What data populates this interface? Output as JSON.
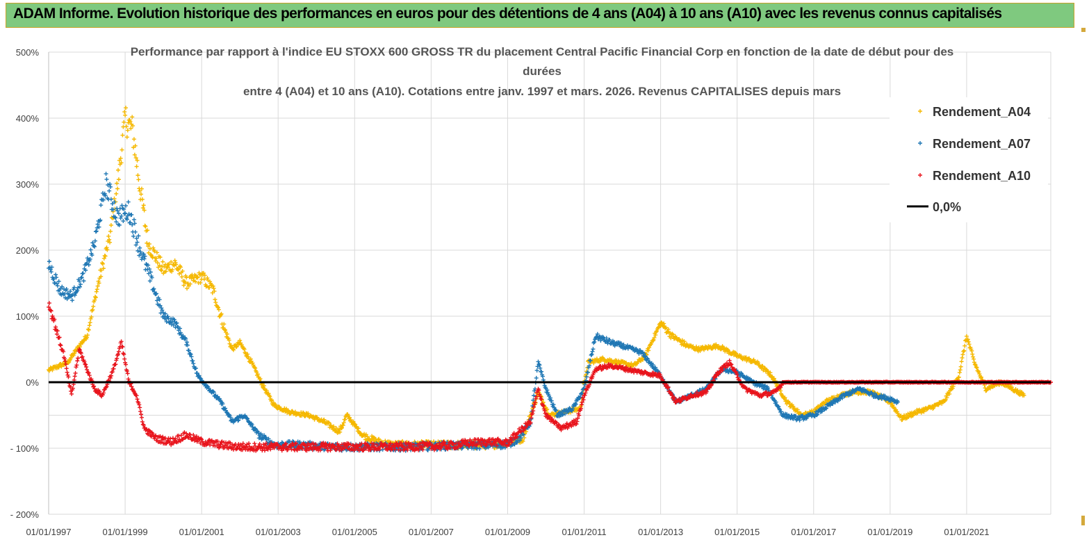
{
  "banner": {
    "title": "ADAM Informe. Evolution historique des performances en euros pour des détentions de 4 ans (A04) à 10 ans (A10) avec les revenus connus capitalisés"
  },
  "colors": {
    "banner_bg": "#7fc97f",
    "A04": "#f5b800",
    "A07": "#1f77b4",
    "A10": "#e8141c",
    "zero": "#000000",
    "grid": "#d9d9d9"
  },
  "chart_data": {
    "type": "scatter",
    "title_lines": [
      "Performance par rapport à l'indice EU STOXX 600 GROSS TR  du placement Central Pacific Financial Corp en fonction de la date de début pour des",
      "durées",
      "entre 4 (A04) et 10 ans (A10).  Cotations entre janv. 1997 et mars. 2026. Revenus CAPITALISES depuis mars"
    ],
    "y_ticks": [
      "500%",
      "400%",
      "300%",
      "200%",
      "100%",
      "0%",
      "- 100%",
      "- 200%"
    ],
    "y_tick_values": [
      500,
      400,
      300,
      200,
      100,
      0,
      -100,
      -200
    ],
    "ylim": [
      -200,
      500
    ],
    "x_ticks": [
      "01/01/1997",
      "01/01/1999",
      "01/01/2001",
      "01/01/2003",
      "01/01/2005",
      "01/01/2007",
      "01/01/2009",
      "01/01/2011",
      "01/01/2013",
      "01/01/2015",
      "01/01/2017",
      "01/01/2019",
      "01/01/2021"
    ],
    "x_tick_values": [
      1997,
      1999,
      2001,
      2003,
      2005,
      2007,
      2009,
      2011,
      2013,
      2015,
      2017,
      2019,
      2021
    ],
    "xlim": [
      1997,
      2023.2
    ],
    "grid": true,
    "legend_position": "top-right",
    "series": [
      {
        "name": "Rendement_A04",
        "color_key": "A04",
        "points": [
          [
            1997,
            18
          ],
          [
            1997.5,
            30
          ],
          [
            1997.8,
            55
          ],
          [
            1998.0,
            70
          ],
          [
            1998.3,
            150
          ],
          [
            1998.6,
            220
          ],
          [
            1998.8,
            300
          ],
          [
            1999.0,
            400
          ],
          [
            1999.2,
            380
          ],
          [
            1999.4,
            290
          ],
          [
            1999.6,
            210
          ],
          [
            1999.8,
            190
          ],
          [
            2000.0,
            170
          ],
          [
            2000.3,
            180
          ],
          [
            2000.6,
            150
          ],
          [
            2001.0,
            160
          ],
          [
            2001.3,
            140
          ],
          [
            2001.6,
            80
          ],
          [
            2001.8,
            50
          ],
          [
            2002.0,
            60
          ],
          [
            2002.3,
            30
          ],
          [
            2002.6,
            -5
          ],
          [
            2002.9,
            -35
          ],
          [
            2003.3,
            -45
          ],
          [
            2003.8,
            -50
          ],
          [
            2004.2,
            -60
          ],
          [
            2004.6,
            -75
          ],
          [
            2004.8,
            -50
          ],
          [
            2005.2,
            -80
          ],
          [
            2005.6,
            -90
          ],
          [
            2006.0,
            -95
          ],
          [
            2006.5,
            -95
          ],
          [
            2007.0,
            -95
          ],
          [
            2007.5,
            -95
          ],
          [
            2008.0,
            -95
          ],
          [
            2008.5,
            -95
          ],
          [
            2009.0,
            -92
          ],
          [
            2009.4,
            -85
          ],
          [
            2009.8,
            -15
          ],
          [
            2010.1,
            -50
          ],
          [
            2010.5,
            -45
          ],
          [
            2010.9,
            -40
          ],
          [
            2011.1,
            30
          ],
          [
            2011.5,
            35
          ],
          [
            2011.9,
            30
          ],
          [
            2012.3,
            25
          ],
          [
            2012.6,
            40
          ],
          [
            2013.0,
            90
          ],
          [
            2013.3,
            70
          ],
          [
            2013.7,
            55
          ],
          [
            2014.0,
            50
          ],
          [
            2014.5,
            55
          ],
          [
            2015.0,
            40
          ],
          [
            2015.5,
            30
          ],
          [
            2015.9,
            10
          ],
          [
            2016.3,
            -30
          ],
          [
            2016.7,
            -50
          ],
          [
            2017.0,
            -45
          ],
          [
            2017.3,
            -30
          ],
          [
            2017.7,
            -20
          ],
          [
            2018.0,
            -15
          ],
          [
            2018.5,
            -15
          ],
          [
            2019.0,
            -30
          ],
          [
            2019.3,
            -55
          ],
          [
            2019.7,
            -45
          ],
          [
            2020.0,
            -40
          ],
          [
            2020.4,
            -30
          ],
          [
            2020.8,
            10
          ],
          [
            2021.0,
            70
          ],
          [
            2021.2,
            30
          ],
          [
            2021.5,
            -10
          ],
          [
            2021.9,
            0
          ],
          [
            2022.2,
            -10
          ],
          [
            2022.5,
            -20
          ]
        ]
      },
      {
        "name": "Rendement_A07",
        "color_key": "A07",
        "points": [
          [
            1997,
            180
          ],
          [
            1997.3,
            140
          ],
          [
            1997.6,
            130
          ],
          [
            1997.9,
            160
          ],
          [
            1998.2,
            210
          ],
          [
            1998.5,
            300
          ],
          [
            1998.8,
            250
          ],
          [
            1999.1,
            260
          ],
          [
            1999.4,
            200
          ],
          [
            1999.7,
            150
          ],
          [
            2000.0,
            100
          ],
          [
            2000.3,
            90
          ],
          [
            2000.6,
            60
          ],
          [
            2000.9,
            10
          ],
          [
            2001.2,
            -10
          ],
          [
            2001.5,
            -30
          ],
          [
            2001.8,
            -60
          ],
          [
            2002.1,
            -50
          ],
          [
            2002.5,
            -80
          ],
          [
            2002.9,
            -95
          ],
          [
            2003.5,
            -95
          ],
          [
            2004.5,
            -98
          ],
          [
            2005.5,
            -98
          ],
          [
            2006.5,
            -98
          ],
          [
            2007.5,
            -96
          ],
          [
            2008.5,
            -95
          ],
          [
            2009.0,
            -94
          ],
          [
            2009.3,
            -85
          ],
          [
            2009.6,
            -60
          ],
          [
            2009.8,
            30
          ],
          [
            2010.0,
            -10
          ],
          [
            2010.3,
            -50
          ],
          [
            2010.7,
            -40
          ],
          [
            2011.0,
            -10
          ],
          [
            2011.3,
            70
          ],
          [
            2011.7,
            60
          ],
          [
            2012.0,
            55
          ],
          [
            2012.5,
            45
          ],
          [
            2013.0,
            10
          ],
          [
            2013.4,
            -30
          ],
          [
            2013.8,
            -20
          ],
          [
            2014.2,
            -10
          ],
          [
            2014.6,
            20
          ],
          [
            2015.0,
            15
          ],
          [
            2015.4,
            0
          ],
          [
            2015.8,
            -10
          ],
          [
            2016.2,
            -50
          ],
          [
            2016.6,
            -55
          ],
          [
            2017.0,
            -50
          ],
          [
            2017.4,
            -35
          ],
          [
            2017.8,
            -20
          ],
          [
            2018.2,
            -10
          ],
          [
            2018.6,
            -20
          ],
          [
            2019.0,
            -25
          ],
          [
            2019.2,
            -30
          ]
        ]
      },
      {
        "name": "Rendement_A10",
        "color_key": "A10",
        "points": [
          [
            1997,
            120
          ],
          [
            1997.2,
            80
          ],
          [
            1997.4,
            40
          ],
          [
            1997.6,
            -20
          ],
          [
            1997.8,
            50
          ],
          [
            1998.0,
            20
          ],
          [
            1998.2,
            -10
          ],
          [
            1998.4,
            -20
          ],
          [
            1998.7,
            20
          ],
          [
            1998.9,
            60
          ],
          [
            1999.1,
            0
          ],
          [
            1999.3,
            -20
          ],
          [
            1999.5,
            -70
          ],
          [
            1999.8,
            -85
          ],
          [
            2000.2,
            -90
          ],
          [
            2000.6,
            -80
          ],
          [
            2001.0,
            -90
          ],
          [
            2001.5,
            -95
          ],
          [
            2002.0,
            -98
          ],
          [
            2003.0,
            -98
          ],
          [
            2004.0,
            -98
          ],
          [
            2005.0,
            -98
          ],
          [
            2006.0,
            -98
          ],
          [
            2007.0,
            -97
          ],
          [
            2007.5,
            -96
          ],
          [
            2008.0,
            -92
          ],
          [
            2008.5,
            -90
          ],
          [
            2009.0,
            -92
          ],
          [
            2009.3,
            -75
          ],
          [
            2009.6,
            -60
          ],
          [
            2009.8,
            -10
          ],
          [
            2010.0,
            -50
          ],
          [
            2010.4,
            -70
          ],
          [
            2010.8,
            -60
          ],
          [
            2011.0,
            -20
          ],
          [
            2011.3,
            20
          ],
          [
            2011.7,
            25
          ],
          [
            2012.1,
            20
          ],
          [
            2012.5,
            15
          ],
          [
            2013.0,
            10
          ],
          [
            2013.4,
            -30
          ],
          [
            2013.8,
            -20
          ],
          [
            2014.2,
            -15
          ],
          [
            2014.5,
            15
          ],
          [
            2014.8,
            30
          ],
          [
            2015.2,
            -10
          ],
          [
            2015.6,
            -20
          ],
          [
            2016.0,
            -15
          ],
          [
            2016.2,
            0
          ],
          [
            2018.0,
            0
          ],
          [
            2020.0,
            0
          ],
          [
            2022.0,
            0
          ],
          [
            2023.2,
            0
          ]
        ]
      }
    ],
    "zero_line": {
      "name": "0,0%",
      "value": 0
    }
  }
}
